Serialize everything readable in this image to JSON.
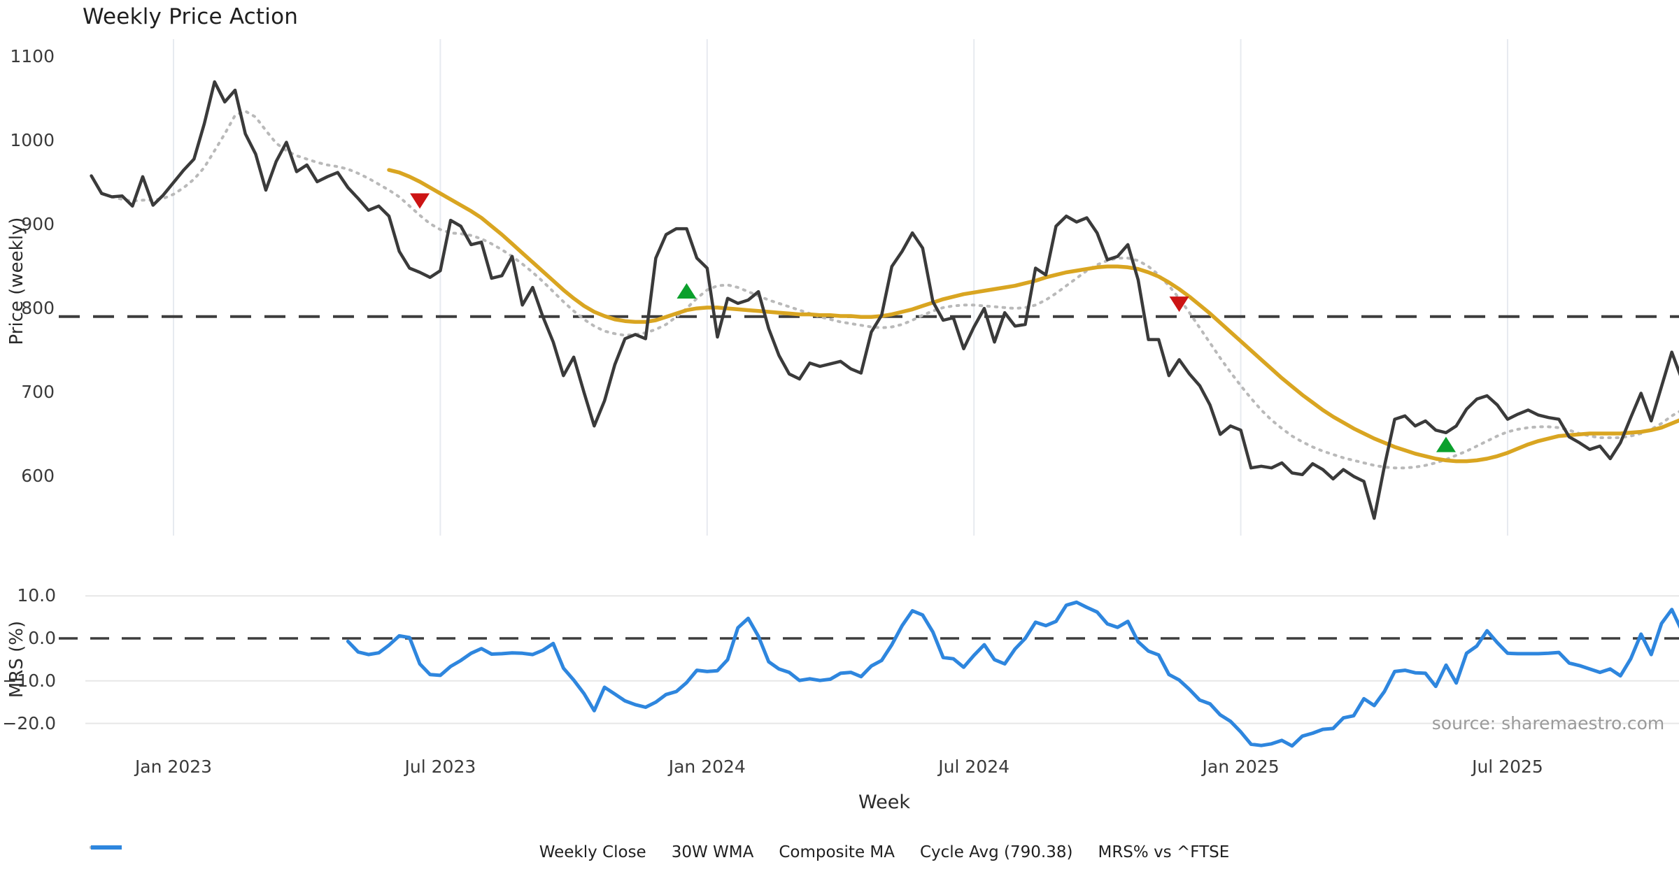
{
  "title": "Weekly Price Action",
  "source": "source: sharemaestro.com",
  "colors": {
    "close": "#3a3a3a",
    "wma": "#d9a521",
    "composite": "#b9b9b9",
    "cycle": "#3d3d3d",
    "mrs": "#2e86de",
    "buy": "#0ba02c",
    "sell": "#cc1414",
    "grid_v": "#e7eaf0",
    "grid_h": "#e7e7e7"
  },
  "price_axis": {
    "label": "Price (weekly)",
    "tick_labels": [
      "1100",
      "1000",
      "900",
      "800",
      "700",
      "600"
    ],
    "tick_values": [
      1100,
      1000,
      900,
      800,
      700,
      600
    ]
  },
  "mrs_axis": {
    "label": "MRS (%)",
    "tick_labels": [
      "10.0",
      "0.0",
      "−10.0",
      "−20.0"
    ],
    "tick_values": [
      10,
      0,
      -10,
      -20
    ]
  },
  "x_axis": {
    "label": "Week",
    "tick_labels": [
      "Jan 2023",
      "Jul 2023",
      "Jan 2024",
      "Jul 2024",
      "Jan 2025",
      "Jul 2025"
    ],
    "tick_weeks": [
      8,
      34,
      60,
      86,
      112,
      138
    ]
  },
  "legend": [
    {
      "label": "Weekly Close",
      "style": "solid",
      "color_key": "close"
    },
    {
      "label": "30W WMA",
      "style": "solid",
      "color_key": "wma"
    },
    {
      "label": "Composite MA",
      "style": "dotted",
      "color_key": "composite"
    },
    {
      "label": "Cycle Avg (790.38)",
      "style": "dashed",
      "color_key": "cycle"
    },
    {
      "label": "MRS% vs ^FTSE",
      "style": "solid",
      "color_key": "mrs"
    }
  ],
  "chart_data": {
    "type": "line",
    "x_unit": "week_index",
    "n_weeks": 156,
    "x_tick_weeks": [
      8,
      34,
      60,
      86,
      112,
      138
    ],
    "x_tick_labels": [
      "Jan 2023",
      "Jul 2023",
      "Jan 2024",
      "Jul 2024",
      "Jan 2025",
      "Jul 2025"
    ],
    "price_panel": {
      "ylim": [
        555,
        1110
      ],
      "yticks": [
        600,
        700,
        800,
        900,
        1000,
        1100
      ],
      "cycle_avg": 790.38,
      "series": [
        {
          "name": "Weekly Close",
          "values": [
            958,
            937,
            933,
            934,
            922,
            957,
            923,
            935,
            950,
            965,
            978,
            1020,
            1070,
            1046,
            1060,
            1008,
            984,
            941,
            975,
            998,
            963,
            971,
            951,
            957,
            962,
            944,
            931,
            917,
            922,
            910,
            868,
            848,
            843,
            837,
            845,
            905,
            898,
            876,
            879,
            836,
            839,
            862,
            804,
            825,
            790,
            760,
            720,
            742,
            700,
            660,
            690,
            733,
            764,
            769,
            764,
            860,
            888,
            895,
            895,
            860,
            848,
            766,
            812,
            806,
            810,
            820,
            776,
            744,
            722,
            716,
            735,
            731,
            734,
            737,
            728,
            723,
            772,
            792,
            850,
            868,
            890,
            872,
            808,
            786,
            789,
            752,
            778,
            800,
            760,
            795,
            779,
            781,
            848,
            840,
            898,
            910,
            903,
            908,
            890,
            858,
            862,
            876,
            834,
            763,
            763,
            720,
            739,
            722,
            708,
            685,
            650,
            660,
            655,
            610,
            612,
            610,
            616,
            604,
            602,
            615,
            608,
            597,
            608,
            600,
            594,
            550,
            612,
            668,
            672,
            660,
            666,
            655,
            652,
            660,
            680,
            692,
            696,
            685,
            668,
            674,
            679,
            673,
            670,
            668,
            647,
            640,
            632,
            636,
            621,
            640,
            670,
            699,
            666,
            707,
            748,
            715
          ]
        },
        {
          "name": "30W WMA",
          "values": [
            null,
            null,
            null,
            null,
            null,
            null,
            null,
            null,
            null,
            null,
            null,
            null,
            null,
            null,
            null,
            null,
            null,
            null,
            null,
            null,
            null,
            null,
            null,
            null,
            null,
            null,
            null,
            null,
            null,
            965,
            962,
            957,
            951,
            944,
            937,
            930,
            923,
            916,
            908,
            898,
            888,
            877,
            866,
            855,
            844,
            833,
            822,
            812,
            803,
            796,
            791,
            787,
            785,
            784,
            784,
            786,
            790,
            794,
            798,
            800,
            801,
            801,
            800,
            799,
            798,
            797,
            796,
            795,
            794,
            793,
            793,
            792,
            792,
            791,
            791,
            790,
            790,
            791,
            793,
            796,
            799,
            803,
            807,
            811,
            814,
            817,
            819,
            821,
            823,
            825,
            827,
            830,
            833,
            837,
            840,
            843,
            845,
            847,
            849,
            850,
            850,
            849,
            847,
            843,
            838,
            831,
            823,
            814,
            804,
            794,
            783,
            772,
            761,
            750,
            739,
            728,
            717,
            707,
            697,
            688,
            679,
            671,
            664,
            657,
            651,
            645,
            640,
            635,
            631,
            627,
            624,
            621,
            619,
            618,
            618,
            619,
            621,
            624,
            628,
            633,
            638,
            642,
            645,
            648,
            649,
            650,
            651,
            651,
            651,
            651,
            652,
            653,
            655,
            658,
            663,
            668
          ]
        },
        {
          "name": "Composite MA",
          "values": [
            null,
            null,
            933,
            930,
            928,
            929,
            929,
            931,
            936,
            944,
            954,
            968,
            988,
            1008,
            1030,
            1035,
            1028,
            1012,
            997,
            988,
            982,
            978,
            974,
            971,
            969,
            966,
            961,
            955,
            948,
            941,
            933,
            922,
            911,
            901,
            894,
            890,
            889,
            887,
            883,
            877,
            870,
            862,
            853,
            843,
            832,
            820,
            808,
            797,
            787,
            779,
            773,
            770,
            768,
            769,
            771,
            775,
            781,
            790,
            800,
            812,
            822,
            827,
            828,
            825,
            820,
            815,
            810,
            806,
            802,
            798,
            794,
            790,
            787,
            784,
            782,
            780,
            778,
            777,
            778,
            781,
            786,
            792,
            797,
            801,
            803,
            804,
            804,
            803,
            802,
            801,
            800,
            801,
            804,
            810,
            818,
            827,
            836,
            845,
            852,
            857,
            860,
            860,
            857,
            850,
            840,
            827,
            812,
            795,
            777,
            759,
            741,
            724,
            708,
            693,
            679,
            667,
            657,
            648,
            641,
            635,
            630,
            626,
            622,
            619,
            616,
            613,
            611,
            610,
            610,
            611,
            613,
            616,
            620,
            625,
            630,
            636,
            642,
            648,
            653,
            656,
            658,
            659,
            659,
            658,
            655,
            651,
            648,
            646,
            646,
            646,
            648,
            651,
            656,
            663,
            672,
            679
          ]
        }
      ],
      "buy_markers": [
        {
          "week": 58,
          "price": 821
        },
        {
          "week": 132,
          "price": 638
        }
      ],
      "sell_markers": [
        {
          "week": 32,
          "price": 928
        },
        {
          "week": 106,
          "price": 805
        }
      ]
    },
    "mrs_panel": {
      "ylim": [
        -28.5,
        12
      ],
      "yticks": [
        -20,
        -10,
        0,
        10
      ],
      "zero_line": 0,
      "series": [
        {
          "name": "MRS% vs ^FTSE",
          "values": [
            null,
            null,
            null,
            null,
            null,
            null,
            null,
            null,
            null,
            null,
            null,
            null,
            null,
            null,
            null,
            null,
            null,
            null,
            null,
            null,
            null,
            null,
            null,
            null,
            null,
            -0.7,
            -3.2,
            -3.8,
            -3.4,
            -1.6,
            0.6,
            0.2,
            -6.0,
            -8.5,
            -8.7,
            -6.6,
            -5.2,
            -3.5,
            -2.4,
            -3.7,
            -3.6,
            -3.4,
            -3.5,
            -3.8,
            -2.8,
            -1.2,
            -7.0,
            -9.8,
            -13.0,
            -17.0,
            -11.5,
            -13.1,
            -14.7,
            -15.6,
            -16.2,
            -15.0,
            -13.2,
            -12.5,
            -10.4,
            -7.5,
            -7.8,
            -7.6,
            -5.0,
            2.5,
            4.7,
            0.5,
            -5.5,
            -7.2,
            -8.0,
            -9.9,
            -9.5,
            -9.9,
            -9.6,
            -8.2,
            -8.0,
            -9.0,
            -6.5,
            -5.2,
            -1.5,
            3.0,
            6.5,
            5.5,
            1.5,
            -4.5,
            -4.8,
            -6.8,
            -4.0,
            -1.5,
            -5.0,
            -6.0,
            -2.5,
            0.0,
            3.8,
            3.0,
            4.0,
            7.8,
            8.5,
            7.3,
            6.2,
            3.4,
            2.6,
            4.0,
            -0.8,
            -3.0,
            -3.9,
            -8.5,
            -9.8,
            -12.0,
            -14.5,
            -15.4,
            -18.0,
            -19.5,
            -22.0,
            -24.9,
            -25.2,
            -24.8,
            -24.0,
            -25.3,
            -23.0,
            -22.3,
            -21.4,
            -21.2,
            -18.7,
            -18.2,
            -14.2,
            -15.8,
            -12.5,
            -7.8,
            -7.5,
            -8.1,
            -8.2,
            -11.3,
            -6.3,
            -10.5,
            -3.5,
            -1.8,
            1.8,
            -1.0,
            -3.5,
            -3.6,
            -3.6,
            -3.6,
            -3.5,
            -3.3,
            -5.8,
            -6.4,
            -7.2,
            -8.0,
            -7.2,
            -8.8,
            -4.8,
            1.0,
            -3.8,
            3.5,
            6.8,
            1.7
          ]
        }
      ]
    }
  }
}
